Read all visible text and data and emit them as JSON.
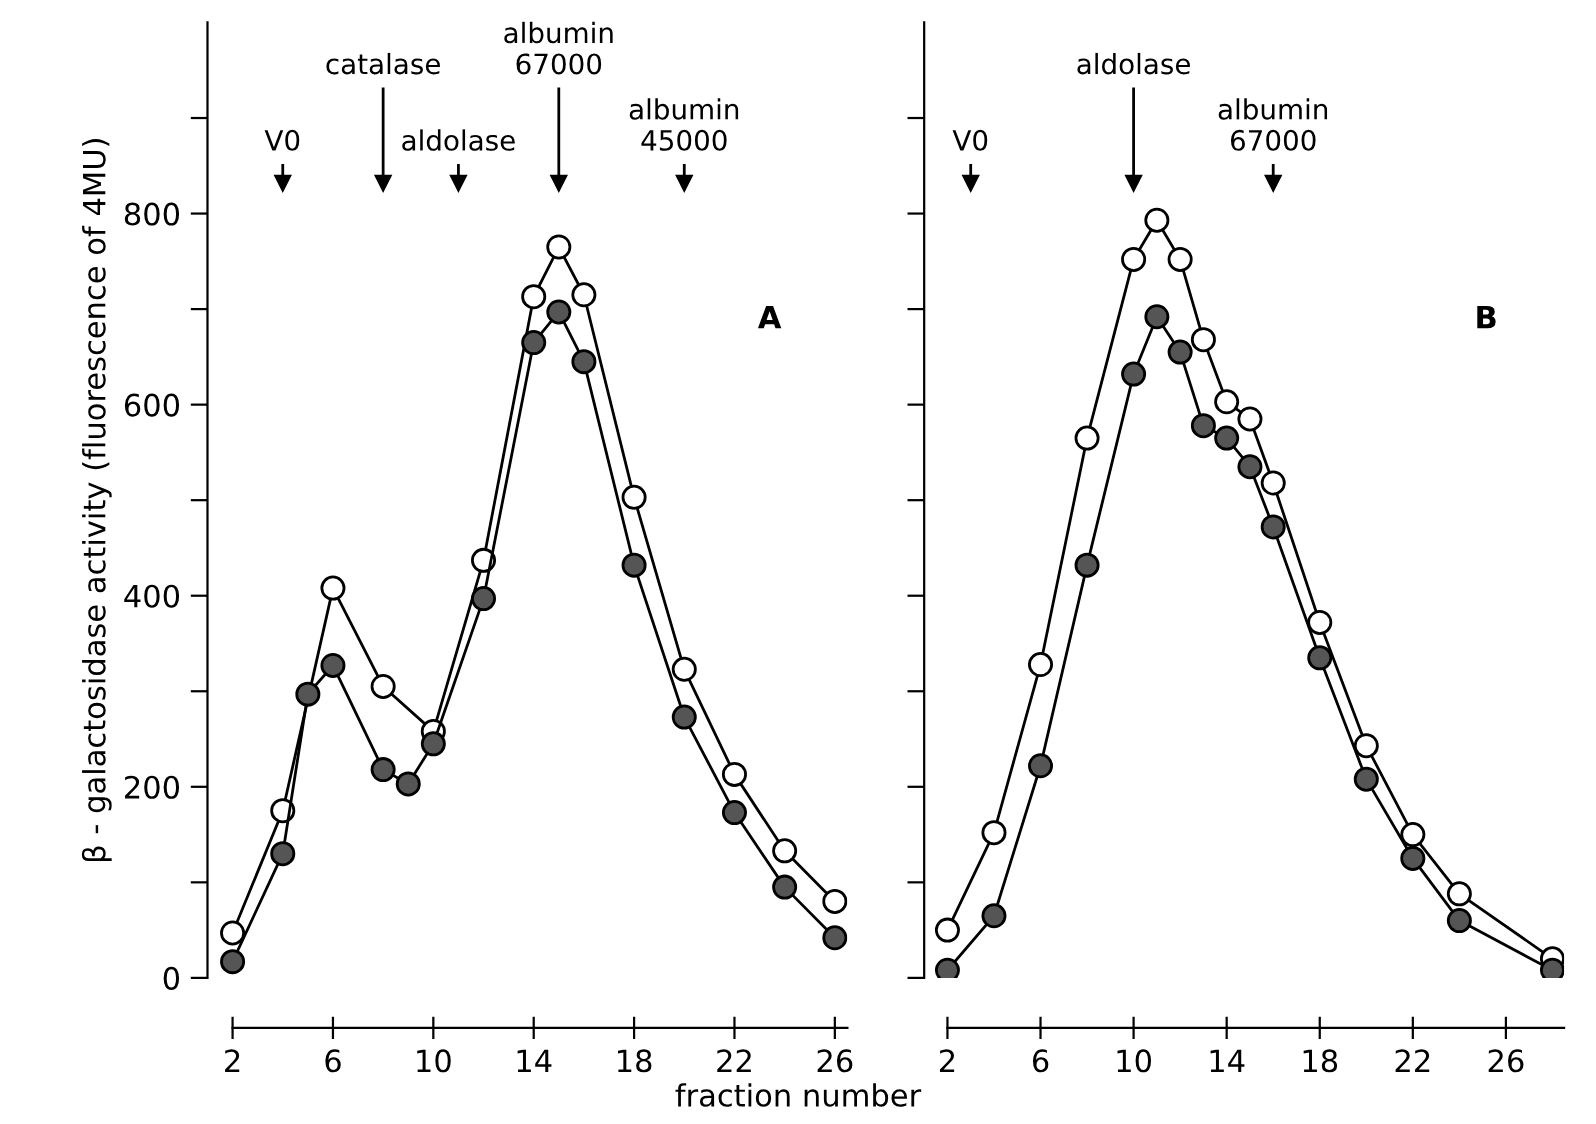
{
  "chart_data": [
    {
      "type": "line",
      "xlabel": "fraction number",
      "ylabel": "β - galactosidase activity (fluorescence of 4MU)",
      "xlim": [
        1,
        26.5
      ],
      "xticks": [
        2,
        6,
        10,
        14,
        18,
        22,
        26
      ],
      "ylim": [
        0,
        1000
      ],
      "yticks": [
        0,
        {
          "value": 100,
          "label": null
        },
        200,
        {
          "value": 300,
          "label": null
        },
        400,
        {
          "value": 500,
          "label": null
        },
        600,
        {
          "value": 700,
          "label": null
        },
        800,
        {
          "value": 900,
          "label": null
        }
      ],
      "marker": "circle",
      "grid": false,
      "legend": false,
      "series": [
        {
          "color": "#ffffff",
          "x": [
            2,
            4,
            6,
            8,
            10,
            12,
            14,
            15,
            16,
            18,
            20,
            22,
            24,
            26
          ],
          "values": [
            47,
            175,
            408,
            305,
            258,
            437,
            713,
            765,
            715,
            503,
            323,
            213,
            133,
            80
          ]
        },
        {
          "color": "#555555",
          "x": [
            2,
            4,
            5,
            6,
            8,
            9,
            10,
            12,
            14,
            15,
            16,
            18,
            20,
            22,
            24,
            26
          ],
          "values": [
            17,
            130,
            297,
            327,
            218,
            203,
            245,
            397,
            665,
            697,
            645,
            432,
            273,
            173,
            95,
            42
          ]
        }
      ],
      "ref_lines": [
        {
          "axis": "x",
          "value": 4,
          "label": "V0"
        },
        {
          "axis": "x",
          "value": 8,
          "label": "catalase"
        },
        {
          "axis": "x",
          "value": 11,
          "label": "aldolase"
        },
        {
          "axis": "x",
          "value": 15,
          "label": "albumin\n67000"
        },
        {
          "axis": "x",
          "value": 20,
          "label": "albumin\n45000"
        }
      ],
      "annotations": [
        "A"
      ]
    },
    {
      "type": "line",
      "tick_labels": "x",
      "xlim": [
        1,
        28.5
      ],
      "xticks": [
        2,
        6,
        10,
        14,
        18,
        22,
        26
      ],
      "ylim": [
        0,
        1000
      ],
      "yticks": [
        0,
        {
          "value": 100,
          "label": null
        },
        200,
        {
          "value": 300,
          "label": null
        },
        400,
        {
          "value": 500,
          "label": null
        },
        600,
        {
          "value": 700,
          "label": null
        },
        800,
        {
          "value": 900,
          "label": null
        }
      ],
      "marker": "circle",
      "grid": false,
      "legend": false,
      "series": [
        {
          "color": "#ffffff",
          "x": [
            2,
            4,
            6,
            8,
            10,
            11,
            12,
            13,
            14,
            15,
            16,
            18,
            20,
            22,
            24,
            28
          ],
          "values": [
            50,
            152,
            328,
            565,
            752,
            793,
            752,
            668,
            603,
            585,
            518,
            372,
            243,
            150,
            88,
            20
          ]
        },
        {
          "color": "#555555",
          "x": [
            2,
            4,
            6,
            8,
            10,
            11,
            12,
            13,
            14,
            15,
            16,
            18,
            20,
            22,
            24,
            28
          ],
          "values": [
            8,
            65,
            222,
            432,
            632,
            692,
            655,
            578,
            565,
            535,
            472,
            335,
            208,
            125,
            60,
            8
          ]
        }
      ],
      "ref_lines": [
        {
          "axis": "x",
          "value": 3,
          "label": "V0"
        },
        {
          "axis": "x",
          "value": 10,
          "label": "aldolase"
        },
        {
          "axis": "x",
          "value": 16,
          "label": "albumin\n67000"
        }
      ],
      "annotations": [
        "B"
      ]
    }
  ]
}
